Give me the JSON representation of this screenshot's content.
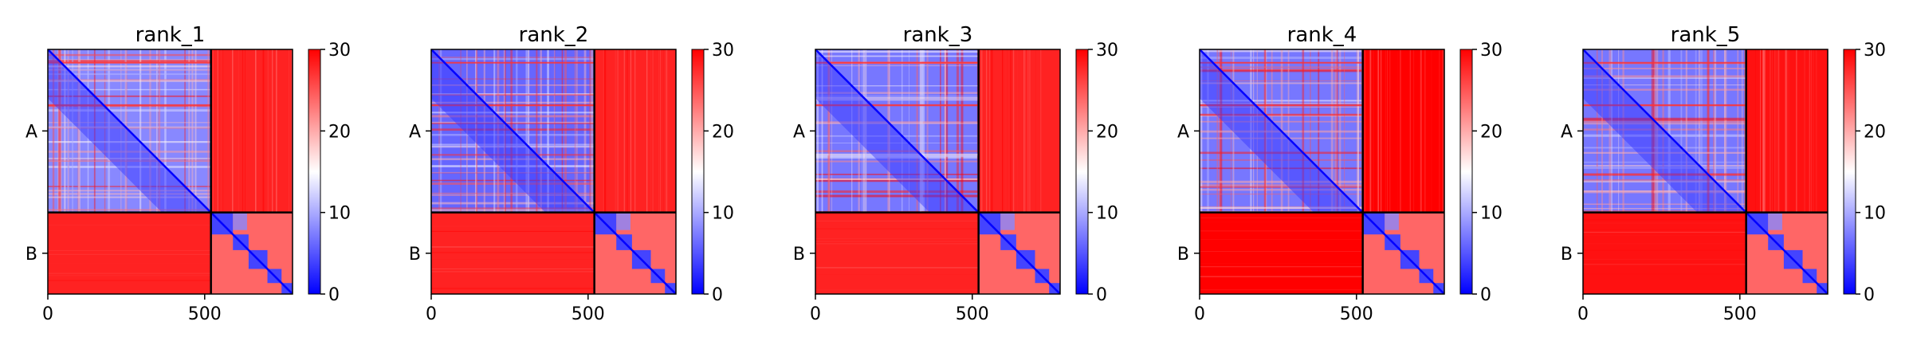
{
  "colormap": {
    "low": "#0000ff",
    "mid": "#ffffff",
    "high": "#ff0000",
    "frame": "#000000"
  },
  "chart_data": [
    {
      "type": "heatmap",
      "title": "rank_1",
      "xlim": [
        0,
        780
      ],
      "ylim": [
        780,
        0
      ],
      "x_ticks": [
        0,
        500
      ],
      "x_tick_labels": [
        "0",
        "500"
      ],
      "chains": [
        {
          "label": "A",
          "start": 0,
          "end": 520
        },
        {
          "label": "B",
          "start": 520,
          "end": 780
        }
      ],
      "chain_boundary": 520,
      "colorbar": {
        "min": 0,
        "max": 30,
        "ticks": [
          0,
          10,
          20,
          30
        ],
        "tick_labels": [
          "0",
          "10",
          "20",
          "30"
        ]
      },
      "intra_A_mean": 8,
      "intra_B_mean": 24,
      "inter_chain_mean": 28
    },
    {
      "type": "heatmap",
      "title": "rank_2",
      "xlim": [
        0,
        780
      ],
      "ylim": [
        780,
        0
      ],
      "x_ticks": [
        0,
        500
      ],
      "x_tick_labels": [
        "0",
        "500"
      ],
      "chains": [
        {
          "label": "A",
          "start": 0,
          "end": 520
        },
        {
          "label": "B",
          "start": 520,
          "end": 780
        }
      ],
      "chain_boundary": 520,
      "colorbar": {
        "min": 0,
        "max": 30,
        "ticks": [
          0,
          10,
          20,
          30
        ],
        "tick_labels": [
          "0",
          "10",
          "20",
          "30"
        ]
      },
      "intra_A_mean": 6,
      "intra_B_mean": 24,
      "inter_chain_mean": 28
    },
    {
      "type": "heatmap",
      "title": "rank_3",
      "xlim": [
        0,
        780
      ],
      "ylim": [
        780,
        0
      ],
      "x_ticks": [
        0,
        500
      ],
      "x_tick_labels": [
        "0",
        "500"
      ],
      "chains": [
        {
          "label": "A",
          "start": 0,
          "end": 520
        },
        {
          "label": "B",
          "start": 520,
          "end": 780
        }
      ],
      "chain_boundary": 520,
      "colorbar": {
        "min": 0,
        "max": 30,
        "ticks": [
          0,
          10,
          20,
          30
        ],
        "tick_labels": [
          "0",
          "10",
          "20",
          "30"
        ]
      },
      "intra_A_mean": 7,
      "intra_B_mean": 24,
      "inter_chain_mean": 28
    },
    {
      "type": "heatmap",
      "title": "rank_4",
      "xlim": [
        0,
        780
      ],
      "ylim": [
        780,
        0
      ],
      "x_ticks": [
        0,
        500
      ],
      "x_tick_labels": [
        "0",
        "500"
      ],
      "chains": [
        {
          "label": "A",
          "start": 0,
          "end": 520
        },
        {
          "label": "B",
          "start": 520,
          "end": 780
        }
      ],
      "chain_boundary": 520,
      "colorbar": {
        "min": 0,
        "max": 30,
        "ticks": [
          0,
          10,
          20,
          30
        ],
        "tick_labels": [
          "0",
          "10",
          "20",
          "30"
        ]
      },
      "intra_A_mean": 7,
      "intra_B_mean": 24,
      "inter_chain_mean": 30
    },
    {
      "type": "heatmap",
      "title": "rank_5",
      "xlim": [
        0,
        780
      ],
      "ylim": [
        780,
        0
      ],
      "x_ticks": [
        0,
        500
      ],
      "x_tick_labels": [
        "0",
        "500"
      ],
      "chains": [
        {
          "label": "A",
          "start": 0,
          "end": 520
        },
        {
          "label": "B",
          "start": 520,
          "end": 780
        }
      ],
      "chain_boundary": 520,
      "colorbar": {
        "min": 0,
        "max": 30,
        "ticks": [
          0,
          10,
          20,
          30
        ],
        "tick_labels": [
          "0",
          "10",
          "20",
          "30"
        ]
      },
      "intra_A_mean": 7,
      "intra_B_mean": 24,
      "inter_chain_mean": 29
    }
  ]
}
